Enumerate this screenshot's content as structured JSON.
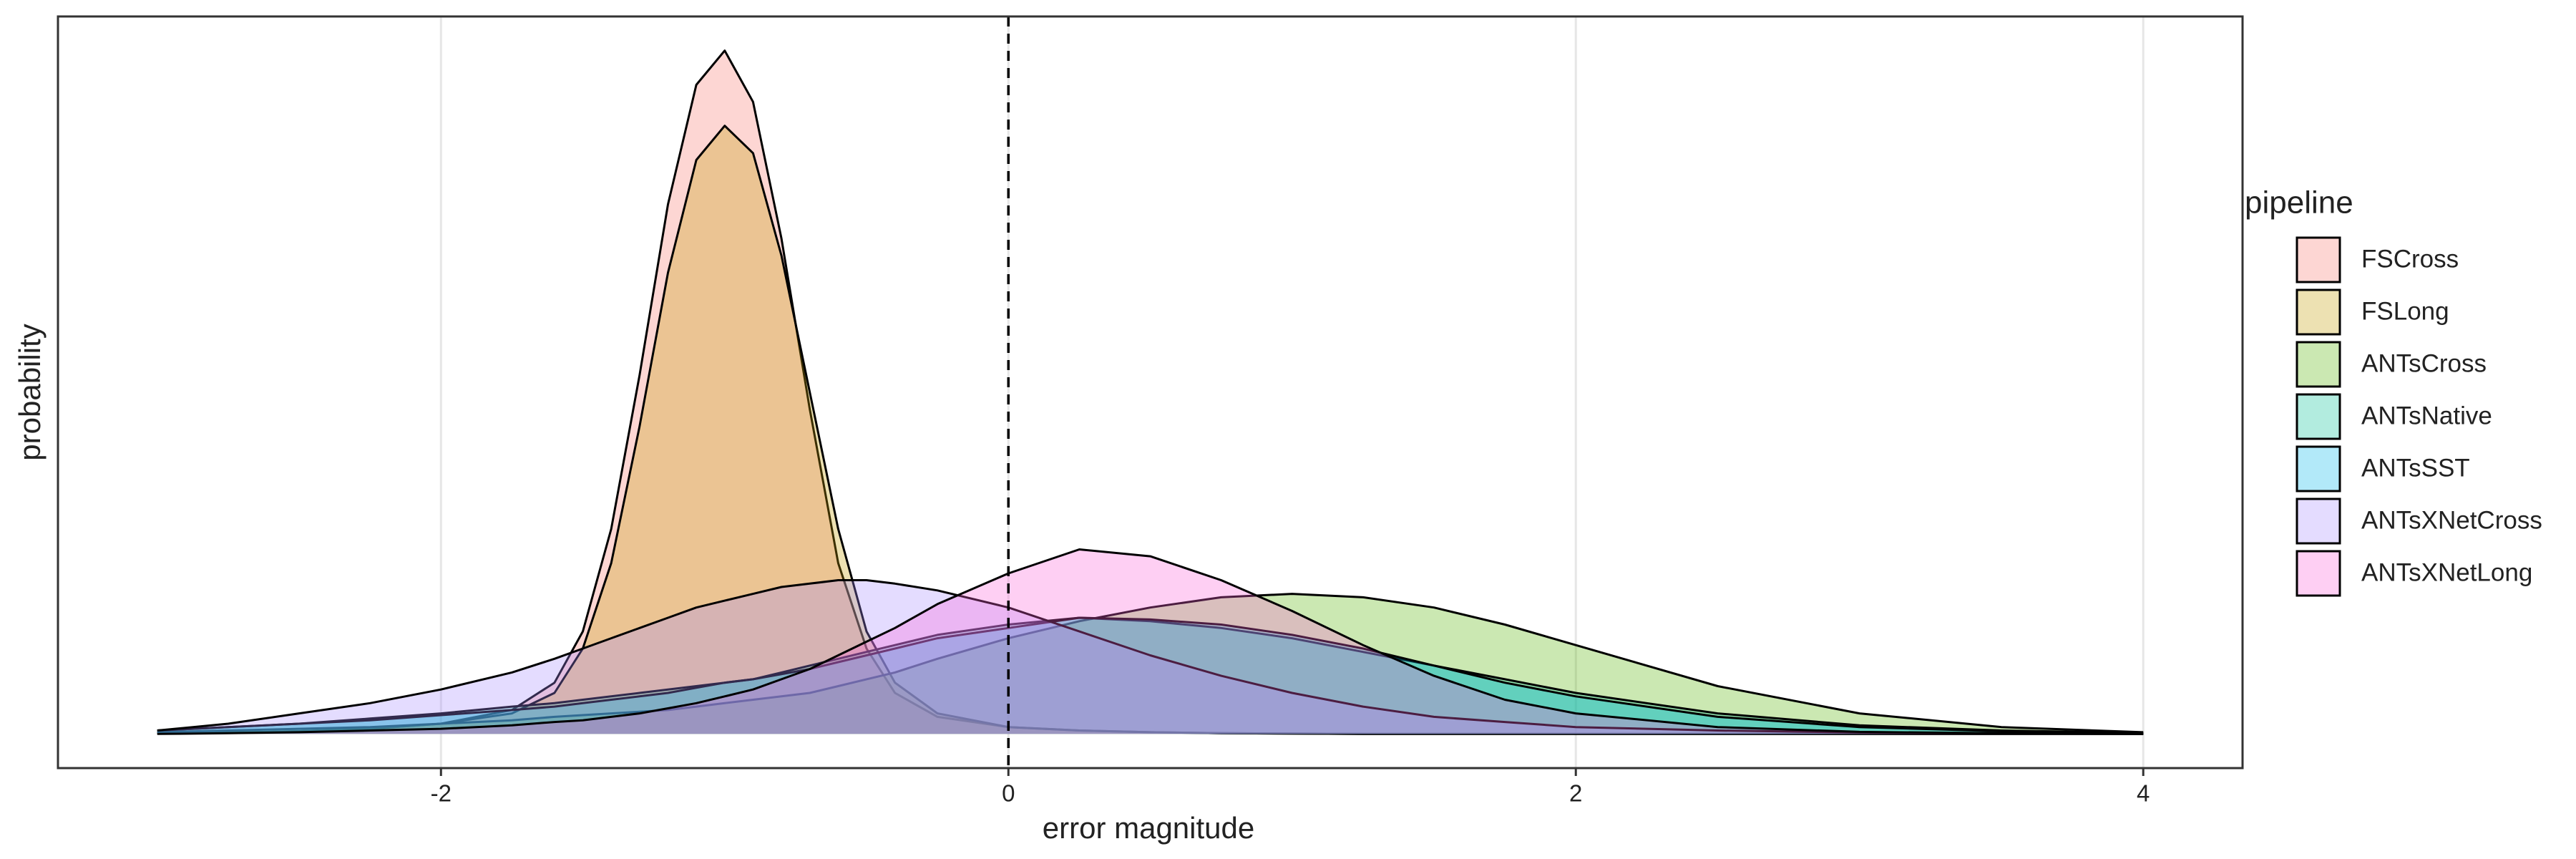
{
  "chart_data": {
    "type": "density",
    "x_label": "error magnitude",
    "y_label": "probability",
    "legend_title": "pipeline",
    "xlim": [
      -3.35,
      4.35
    ],
    "xticks": [
      -2,
      0,
      2,
      4
    ],
    "ylim": [
      -0.1,
      2.1
    ],
    "grid": true,
    "vline": 0,
    "fill_opacity": 0.3,
    "x": [
      -3,
      -2.75,
      -2.5,
      -2.25,
      -2,
      -1.75,
      -1.6,
      -1.5,
      -1.4,
      -1.3,
      -1.2,
      -1.1,
      -1,
      -0.9,
      -0.8,
      -0.7,
      -0.6,
      -0.5,
      -0.4,
      -0.25,
      0,
      0.25,
      0.5,
      0.75,
      1,
      1.25,
      1.5,
      1.75,
      2,
      2.5,
      3,
      3.5,
      4
    ],
    "series": [
      {
        "name": "FSCross",
        "color": "#F8766D",
        "values": [
          0.002,
          0.004,
          0.008,
          0.015,
          0.03,
          0.07,
          0.15,
          0.3,
          0.6,
          1.05,
          1.55,
          1.9,
          2.0,
          1.85,
          1.45,
          0.95,
          0.5,
          0.25,
          0.12,
          0.05,
          0.02,
          0.01,
          0.005,
          0.002,
          0.001,
          0,
          0,
          0,
          0,
          0,
          0,
          0,
          0
        ]
      },
      {
        "name": "FSLong",
        "color": "#C49A00",
        "values": [
          0.002,
          0.004,
          0.008,
          0.015,
          0.03,
          0.06,
          0.12,
          0.25,
          0.5,
          0.9,
          1.35,
          1.68,
          1.78,
          1.7,
          1.4,
          1.0,
          0.6,
          0.3,
          0.15,
          0.06,
          0.02,
          0.01,
          0.005,
          0.002,
          0.001,
          0,
          0,
          0,
          0,
          0,
          0,
          0,
          0
        ]
      },
      {
        "name": "ANTsCross",
        "color": "#53B400",
        "values": [
          0.005,
          0.01,
          0.015,
          0.02,
          0.03,
          0.04,
          0.05,
          0.055,
          0.06,
          0.065,
          0.07,
          0.08,
          0.09,
          0.1,
          0.11,
          0.12,
          0.14,
          0.16,
          0.18,
          0.22,
          0.28,
          0.33,
          0.37,
          0.4,
          0.41,
          0.4,
          0.37,
          0.32,
          0.26,
          0.14,
          0.06,
          0.02,
          0.005
        ]
      },
      {
        "name": "ANTsNative",
        "color": "#00C094",
        "values": [
          0.01,
          0.02,
          0.03,
          0.045,
          0.06,
          0.08,
          0.09,
          0.1,
          0.11,
          0.12,
          0.13,
          0.14,
          0.15,
          0.16,
          0.18,
          0.2,
          0.22,
          0.24,
          0.26,
          0.29,
          0.32,
          0.34,
          0.33,
          0.31,
          0.28,
          0.24,
          0.2,
          0.16,
          0.12,
          0.06,
          0.025,
          0.01,
          0.003
        ]
      },
      {
        "name": "ANTsSST",
        "color": "#00B6EB",
        "values": [
          0.01,
          0.02,
          0.03,
          0.04,
          0.055,
          0.07,
          0.08,
          0.09,
          0.1,
          0.11,
          0.12,
          0.135,
          0.15,
          0.16,
          0.175,
          0.19,
          0.21,
          0.23,
          0.25,
          0.28,
          0.31,
          0.34,
          0.335,
          0.32,
          0.29,
          0.25,
          0.2,
          0.15,
          0.11,
          0.05,
          0.02,
          0.008,
          0.002
        ]
      },
      {
        "name": "ANTsXNetCross",
        "color": "#A58AFF",
        "values": [
          0.01,
          0.03,
          0.06,
          0.09,
          0.13,
          0.18,
          0.22,
          0.25,
          0.28,
          0.31,
          0.34,
          0.37,
          0.39,
          0.41,
          0.43,
          0.44,
          0.45,
          0.45,
          0.44,
          0.42,
          0.37,
          0.3,
          0.23,
          0.17,
          0.12,
          0.08,
          0.05,
          0.035,
          0.02,
          0.01,
          0.004,
          0.001,
          0
        ]
      },
      {
        "name": "ANTsXNetLong",
        "color": "#FB61D7",
        "values": [
          0,
          0.002,
          0.005,
          0.01,
          0.015,
          0.025,
          0.035,
          0.04,
          0.05,
          0.06,
          0.075,
          0.09,
          0.11,
          0.13,
          0.16,
          0.19,
          0.23,
          0.27,
          0.31,
          0.38,
          0.47,
          0.54,
          0.52,
          0.45,
          0.36,
          0.26,
          0.17,
          0.1,
          0.06,
          0.02,
          0.006,
          0.002,
          0
        ]
      }
    ]
  }
}
